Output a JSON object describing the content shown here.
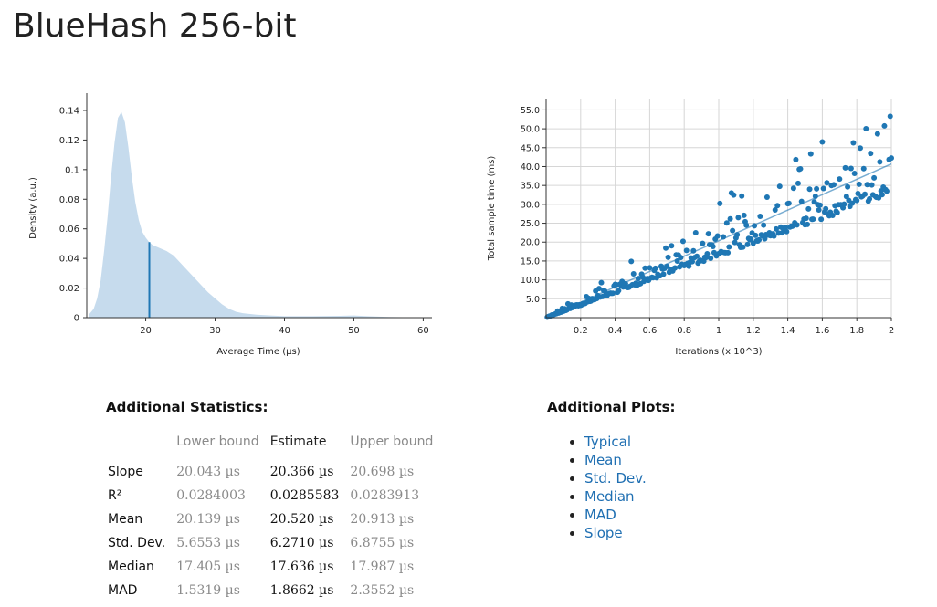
{
  "page": {
    "title": "BlueHash 256-bit"
  },
  "colors": {
    "accent": "#1f77b4",
    "density_fill": "#c6dbed",
    "link": "#1f6fb2"
  },
  "chart_data": [
    {
      "type": "area",
      "xlabel": "Average Time (µs)",
      "ylabel": "Density (a.u.)",
      "xlim": [
        11.5,
        61
      ],
      "ylim": [
        0,
        0.148
      ],
      "x_ticks": [
        20,
        30,
        40,
        50,
        60
      ],
      "y_ticks": [
        0,
        0.02,
        0.04,
        0.06,
        0.08,
        0.1,
        0.12,
        0.14
      ],
      "y_tick_labels": [
        "0",
        "0.02",
        "0.04",
        "0.06",
        "0.08",
        "0.1",
        "0.12",
        "0.14"
      ],
      "x": [
        11.8,
        12.5,
        13.0,
        13.5,
        14.0,
        14.5,
        15.0,
        15.5,
        16.0,
        16.5,
        17.0,
        17.5,
        18.0,
        18.5,
        19.0,
        19.5,
        20.0,
        20.5,
        21.0,
        22.0,
        23.0,
        24.0,
        25.0,
        26.0,
        27.0,
        28.0,
        29.0,
        30.0,
        31.0,
        32.0,
        33.0,
        34.0,
        36.0,
        38.0,
        40.0,
        44.0,
        48.0,
        50.0,
        52.0,
        55.0,
        58.0,
        61.0
      ],
      "y": [
        0.002,
        0.006,
        0.013,
        0.025,
        0.045,
        0.068,
        0.095,
        0.118,
        0.135,
        0.139,
        0.132,
        0.115,
        0.095,
        0.078,
        0.066,
        0.058,
        0.054,
        0.051,
        0.049,
        0.047,
        0.045,
        0.042,
        0.037,
        0.032,
        0.027,
        0.022,
        0.017,
        0.013,
        0.009,
        0.006,
        0.004,
        0.003,
        0.002,
        0.0015,
        0.001,
        0.001,
        0.0012,
        0.0015,
        0.001,
        0.0005,
        0.0002,
        0.0001
      ],
      "mean_marker": {
        "x": 20.52,
        "y": 0.051
      }
    },
    {
      "type": "scatter",
      "xlabel": "Iterations (x 10^3)",
      "ylabel": "Total sample time (ms)",
      "xlim": [
        0,
        2
      ],
      "ylim": [
        0,
        58
      ],
      "x_ticks": [
        0.2,
        0.4,
        0.6,
        0.8,
        1,
        1.2,
        1.4,
        1.6,
        1.8,
        2
      ],
      "y_ticks": [
        5,
        10,
        15,
        20,
        25,
        30,
        35,
        40,
        45,
        50,
        55
      ],
      "y_tick_labels": [
        "5.0",
        "10.0",
        "15.0",
        "20.0",
        "25.0",
        "30.0",
        "35.0",
        "40.0",
        "45.0",
        "50.0",
        "55.0"
      ],
      "slope": 20.366,
      "regression_line": {
        "x": [
          0,
          2
        ],
        "y": [
          0,
          40.7
        ]
      },
      "sample_count": 300
    }
  ],
  "statistics": {
    "heading": "Additional Statistics:",
    "columns": [
      "",
      "Lower bound",
      "Estimate",
      "Upper bound"
    ],
    "rows": [
      {
        "label": "Slope",
        "lower": "20.043 µs",
        "estimate": "20.366 µs",
        "upper": "20.698 µs"
      },
      {
        "label": "R²",
        "lower": "0.0284003",
        "estimate": "0.0285583",
        "upper": "0.0283913"
      },
      {
        "label": "Mean",
        "lower": "20.139 µs",
        "estimate": "20.520 µs",
        "upper": "20.913 µs"
      },
      {
        "label": "Std. Dev.",
        "lower": "5.6553 µs",
        "estimate": "6.2710 µs",
        "upper": "6.8755 µs"
      },
      {
        "label": "Median",
        "lower": "17.405 µs",
        "estimate": "17.636 µs",
        "upper": "17.987 µs"
      },
      {
        "label": "MAD",
        "lower": "1.5319 µs",
        "estimate": "1.8662 µs",
        "upper": "2.3552 µs"
      }
    ]
  },
  "plots": {
    "heading": "Additional Plots:",
    "links": [
      "Typical",
      "Mean",
      "Std. Dev.",
      "Median",
      "MAD",
      "Slope"
    ]
  }
}
